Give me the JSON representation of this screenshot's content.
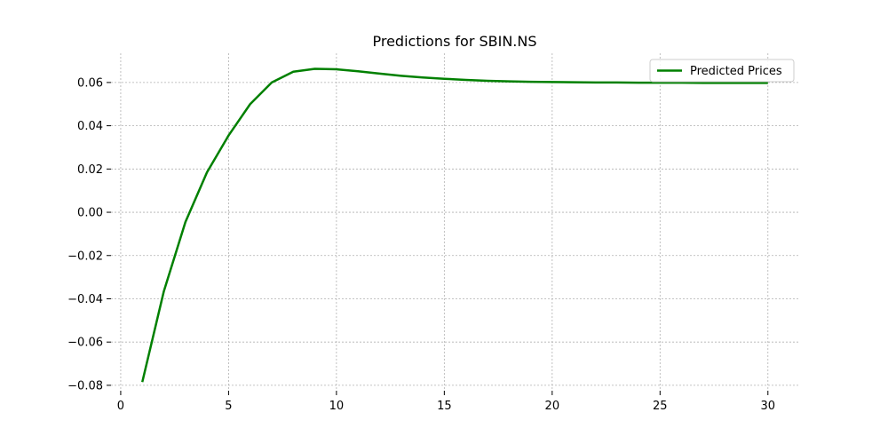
{
  "chart_data": {
    "type": "line",
    "title": "Predictions for SBIN.NS",
    "xlabel": "",
    "ylabel": "",
    "xlim": [
      -0.45,
      31.45
    ],
    "ylim": [
      -0.0825,
      0.0735
    ],
    "x_ticks": [
      0,
      5,
      10,
      15,
      20,
      25,
      30
    ],
    "y_ticks": [
      -0.08,
      -0.06,
      -0.04,
      -0.02,
      0.0,
      0.02,
      0.04,
      0.06
    ],
    "y_tick_labels": [
      "−0.08",
      "−0.06",
      "−0.04",
      "−0.02",
      "0.00",
      "0.02",
      "0.04",
      "0.06"
    ],
    "grid": true,
    "legend_position": "top-right",
    "series": [
      {
        "name": "Predicted Prices",
        "color": "#008000",
        "x": [
          1,
          2,
          3,
          4,
          5,
          6,
          7,
          8,
          9,
          10,
          11,
          12,
          13,
          14,
          15,
          16,
          17,
          18,
          19,
          20,
          21,
          22,
          23,
          24,
          25,
          26,
          27,
          28,
          29,
          30
        ],
        "values": [
          -0.0785,
          -0.0365,
          -0.0045,
          0.0185,
          0.0355,
          0.05,
          0.06,
          0.065,
          0.0663,
          0.0661,
          0.0652,
          0.0641,
          0.0631,
          0.0623,
          0.0617,
          0.0612,
          0.0608,
          0.0605,
          0.0603,
          0.0602,
          0.0601,
          0.06,
          0.06,
          0.0599,
          0.0599,
          0.0599,
          0.0598,
          0.0598,
          0.0598,
          0.0598
        ]
      }
    ]
  }
}
